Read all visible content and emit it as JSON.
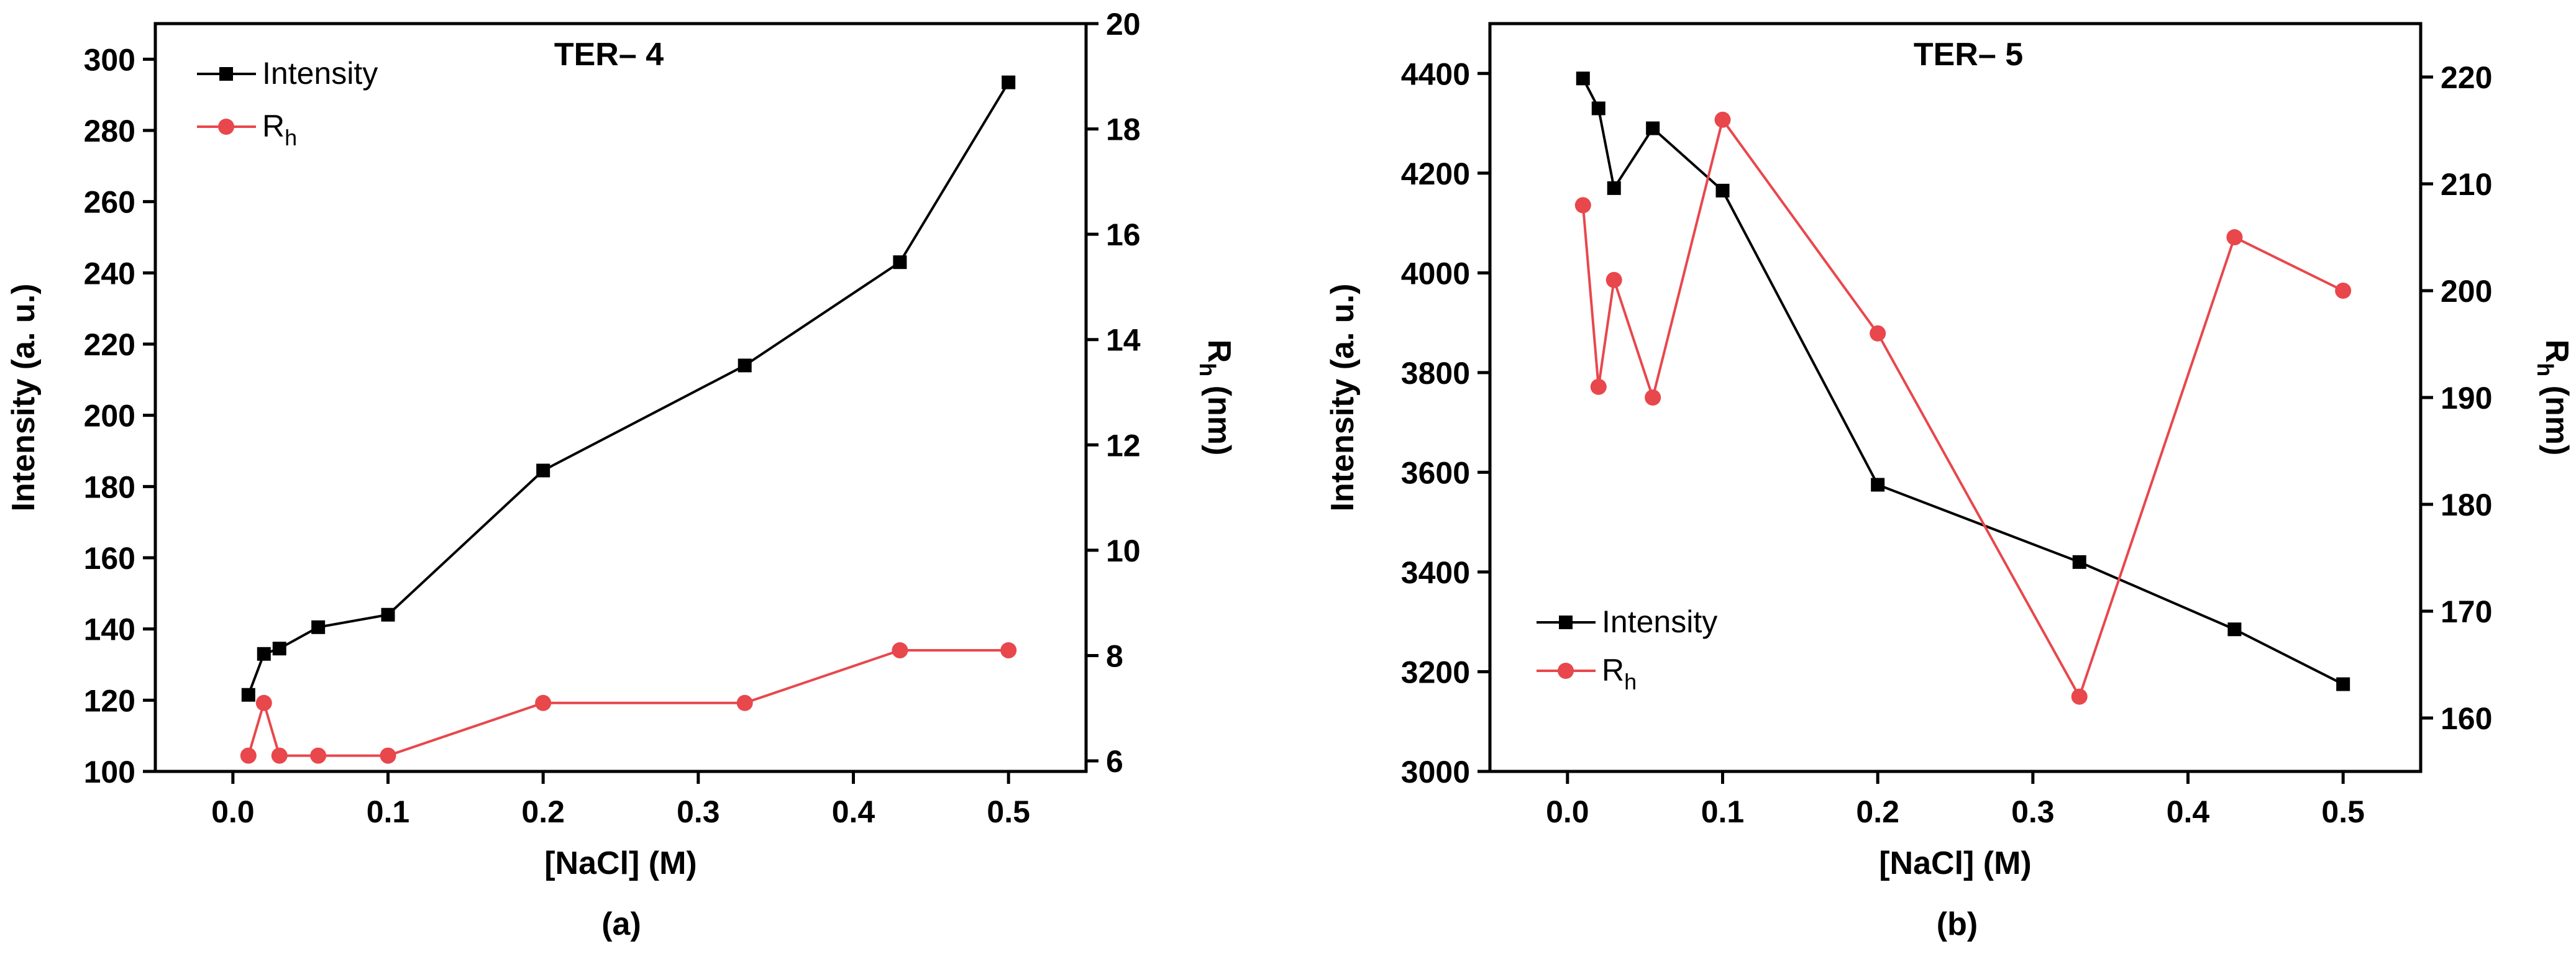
{
  "chart_data": [
    {
      "panel": "a",
      "type": "line",
      "title": "TER– 4",
      "caption": "(a)",
      "xlabel": "[NaCl] (M)",
      "ylabel": "Intensity (a. u.)",
      "y2label": "Rh (nm)",
      "y2label_main": "R",
      "y2label_sub": "h",
      "y2label_rest": " (nm)",
      "xlim": [
        -0.05,
        0.55
      ],
      "ylim": [
        100,
        310
      ],
      "y2lim": [
        5.8,
        20
      ],
      "xticks": [
        0.0,
        0.1,
        0.2,
        0.3,
        0.4,
        0.5
      ],
      "xtick_labels": [
        "0.0",
        "0.1",
        "0.2",
        "0.3",
        "0.4",
        "0.5"
      ],
      "yticks": [
        100,
        120,
        140,
        160,
        180,
        200,
        220,
        240,
        260,
        280,
        300
      ],
      "ytick_labels": [
        "100",
        "120",
        "140",
        "160",
        "180",
        "200",
        "220",
        "240",
        "260",
        "280",
        "300"
      ],
      "y2ticks": [
        6,
        8,
        10,
        12,
        14,
        16,
        18,
        20
      ],
      "y2tick_labels": [
        "6",
        "8",
        "10",
        "12",
        "14",
        "16",
        "18",
        "20"
      ],
      "legend_position": "top-left",
      "series": [
        {
          "name": "Intensity",
          "color": "#000000",
          "marker": "square",
          "axis": "left",
          "x": [
            0.01,
            0.02,
            0.03,
            0.055,
            0.1,
            0.2,
            0.33,
            0.43,
            0.5
          ],
          "values": [
            121.5,
            133,
            134.5,
            140.5,
            144,
            184.5,
            214,
            243,
            293.5
          ]
        },
        {
          "name": "Rh",
          "label_main": "R",
          "label_sub": "h",
          "color": "#e8474c",
          "marker": "circle",
          "axis": "right",
          "x": [
            0.01,
            0.02,
            0.03,
            0.055,
            0.1,
            0.2,
            0.33,
            0.43,
            0.5
          ],
          "values": [
            6.1,
            7.1,
            6.1,
            6.1,
            6.1,
            7.1,
            7.1,
            8.1,
            8.1
          ]
        }
      ]
    },
    {
      "panel": "b",
      "type": "line",
      "title": "TER– 5",
      "caption": "(b)",
      "xlabel": "[NaCl] (M)",
      "ylabel": "Intensity (a. u.)",
      "y2label": "Rh (nm)",
      "y2label_main": "R",
      "y2label_sub": "h",
      "y2label_rest": " (nm)",
      "xlim": [
        -0.05,
        0.55
      ],
      "ylim": [
        3000,
        4500
      ],
      "y2lim": [
        155,
        225
      ],
      "xticks": [
        0.0,
        0.1,
        0.2,
        0.3,
        0.4,
        0.5
      ],
      "xtick_labels": [
        "0.0",
        "0.1",
        "0.2",
        "0.3",
        "0.4",
        "0.5"
      ],
      "yticks": [
        3000,
        3200,
        3400,
        3600,
        3800,
        4000,
        4200,
        4400
      ],
      "ytick_labels": [
        "3000",
        "3200",
        "3400",
        "3600",
        "3800",
        "4000",
        "4200",
        "4400"
      ],
      "y2ticks": [
        160,
        170,
        180,
        190,
        200,
        210,
        220
      ],
      "y2tick_labels": [
        "160",
        "170",
        "180",
        "190",
        "200",
        "210",
        "220"
      ],
      "legend_position": "bottom-left",
      "series": [
        {
          "name": "Intensity",
          "color": "#000000",
          "marker": "square",
          "axis": "left",
          "x": [
            0.01,
            0.02,
            0.03,
            0.055,
            0.1,
            0.2,
            0.33,
            0.43,
            0.5
          ],
          "values": [
            4390,
            4330,
            4170,
            4290,
            4165,
            3575,
            3420,
            3285,
            3175
          ]
        },
        {
          "name": "Rh",
          "label_main": "R",
          "label_sub": "h",
          "color": "#e8474c",
          "marker": "circle",
          "axis": "right",
          "x": [
            0.01,
            0.02,
            0.03,
            0.055,
            0.1,
            0.2,
            0.33,
            0.43,
            0.5
          ],
          "values": [
            208,
            191,
            201,
            190,
            216,
            196,
            162,
            205,
            200
          ]
        }
      ]
    }
  ]
}
